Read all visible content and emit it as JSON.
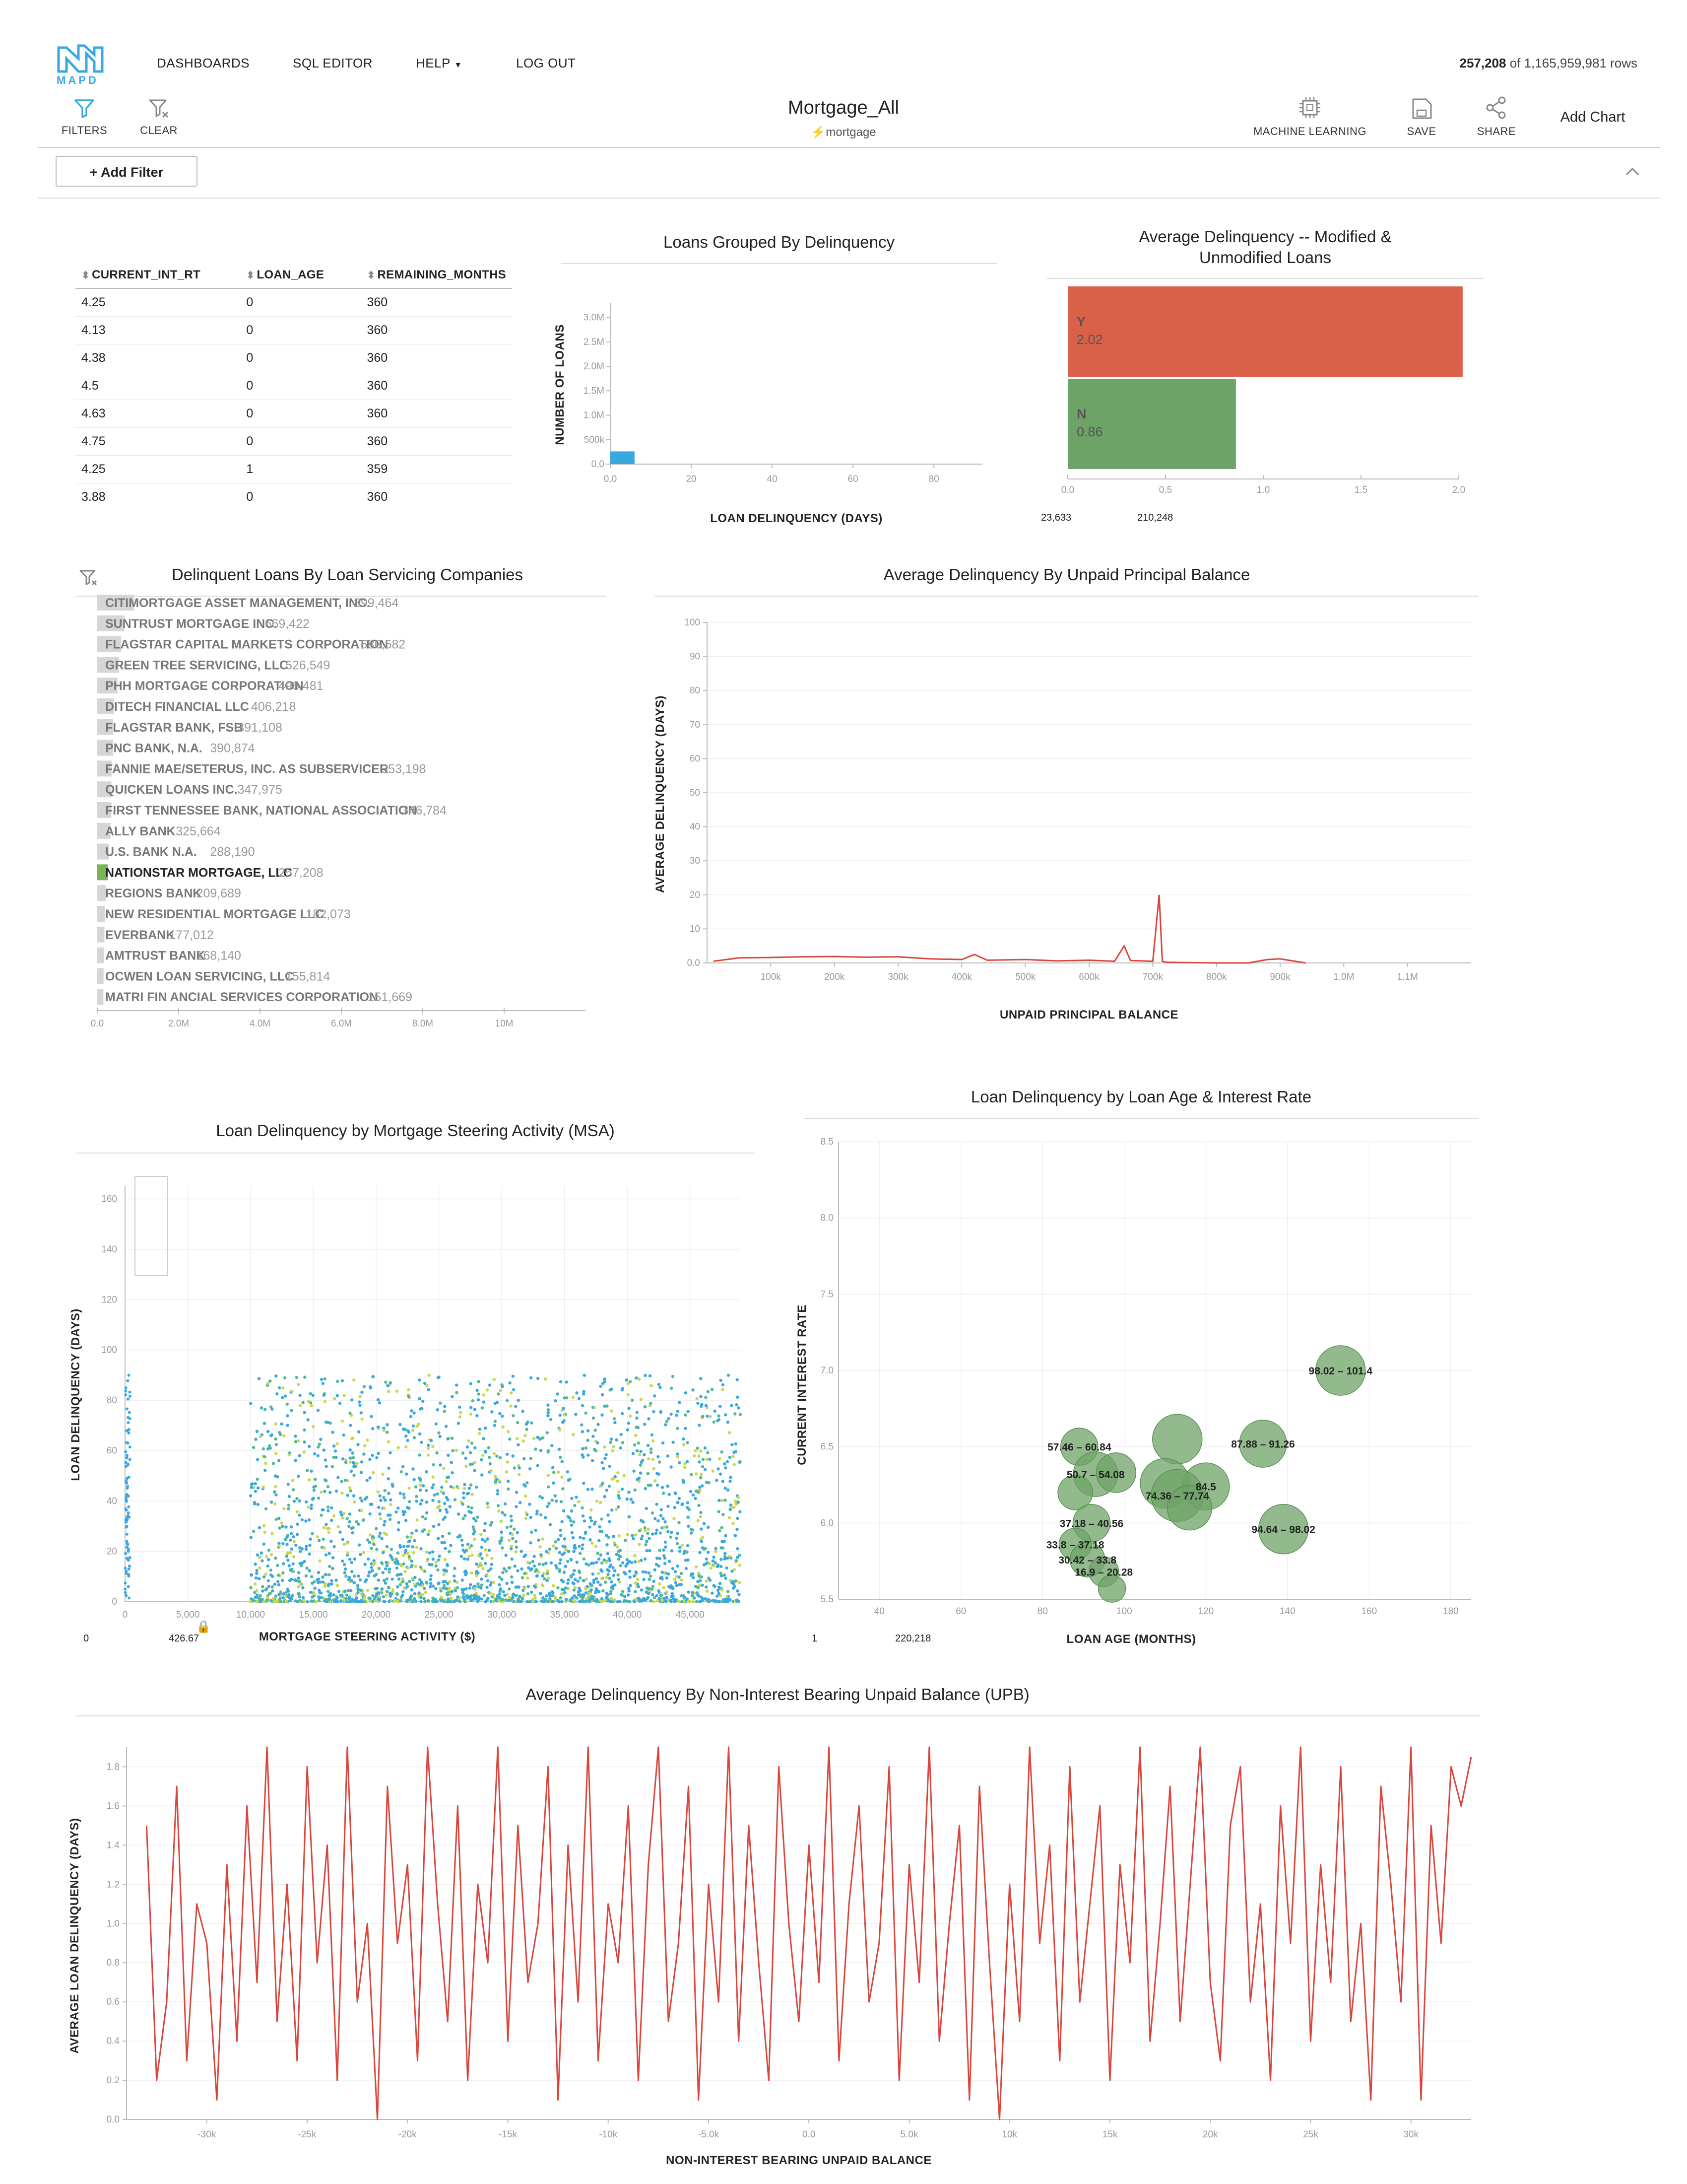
{
  "header": {
    "logo_text": "MAPD",
    "nav": [
      "DASHBOARDS",
      "SQL EDITOR",
      "HELP",
      "LOG OUT"
    ],
    "row_count_filtered": "257,208",
    "row_count_rest": " of 1,165,959,981 rows"
  },
  "toolbar": {
    "filters_label": "FILTERS",
    "clear_label": "CLEAR",
    "dashboard_title": "Mortgage_All",
    "source_table": "mortgage",
    "ml_label": "MACHINE LEARNING",
    "save_label": "SAVE",
    "share_label": "SHARE",
    "add_chart_label": "Add Chart",
    "add_filter_label": "+ Add Filter"
  },
  "colors": {
    "accent": "#3aa8e0",
    "red": "#d9614a",
    "green": "#6ea367",
    "line_red": "#d9463d"
  },
  "table": {
    "columns": [
      "CURRENT_INT_RT",
      "LOAN_AGE",
      "REMAINING_MONTHS"
    ],
    "rows": [
      [
        "4.25",
        "0",
        "360"
      ],
      [
        "4.13",
        "0",
        "360"
      ],
      [
        "4.38",
        "0",
        "360"
      ],
      [
        "4.5",
        "0",
        "360"
      ],
      [
        "4.63",
        "0",
        "360"
      ],
      [
        "4.75",
        "0",
        "360"
      ],
      [
        "4.25",
        "1",
        "359"
      ],
      [
        "3.88",
        "0",
        "360"
      ]
    ]
  },
  "charts": {
    "histogram": {
      "title": "Loans Grouped By Delinquency",
      "xlabel": "LOAN DELINQUENCY (DAYS)",
      "ylabel": "NUMBER OF LOANS",
      "yticks": [
        "0.0",
        "500k",
        "1.0M",
        "1.5M",
        "2.0M",
        "2.5M",
        "3.0M"
      ],
      "xticks": [
        "0.0",
        "20",
        "40",
        "60",
        "80"
      ]
    },
    "modified": {
      "title_line1": "Average Delinquency -- Modified &",
      "title_line2": "Unmodified Loans",
      "xticks": [
        "0.0",
        "0.5",
        "1.0",
        "1.5",
        "2.0"
      ],
      "range_min": "23,633",
      "range_max": "210,248"
    },
    "servicers": {
      "title": "Delinquent Loans By Loan Servicing Companies",
      "xticks": [
        "0.0",
        "2.0M",
        "4.0M",
        "6.0M",
        "8.0M",
        "10M"
      ]
    },
    "upb": {
      "title": "Average Delinquency By Unpaid Principal Balance",
      "xlabel": "UNPAID PRINCIPAL BALANCE",
      "ylabel": "AVERAGE DELINQUENCY (DAYS)",
      "yticks": [
        "0.0",
        "10",
        "20",
        "30",
        "40",
        "50",
        "60",
        "70",
        "80",
        "90",
        "100"
      ],
      "xticks": [
        "100k",
        "200k",
        "300k",
        "400k",
        "500k",
        "600k",
        "700k",
        "800k",
        "900k",
        "1.0M",
        "1.1M"
      ]
    },
    "msa": {
      "title": "Loan Delinquency by Mortgage Steering Activity (MSA)",
      "xlabel": "MORTGAGE STEERING ACTIVITY ($)",
      "ylabel": "LOAN DELINQUENCY (DAYS)",
      "yticks": [
        "0",
        "20",
        "40",
        "60",
        "80",
        "100",
        "120",
        "140",
        "160"
      ],
      "xticks": [
        "0",
        "5,000",
        "10,000",
        "15,000",
        "20,000",
        "25,000",
        "30,000",
        "35,000",
        "40,000",
        "45,000"
      ],
      "range_min": "0",
      "range_max": "426.67"
    },
    "bubble": {
      "title": "Loan Delinquency by Loan Age & Interest Rate",
      "xlabel": "LOAN AGE (MONTHS)",
      "ylabel": "CURRENT INTEREST RATE",
      "yticks": [
        "5.5",
        "6.0",
        "6.5",
        "7.0",
        "7.5",
        "8.0",
        "8.5"
      ],
      "xticks": [
        "40",
        "60",
        "80",
        "100",
        "120",
        "140",
        "160",
        "180"
      ],
      "range_min": "1",
      "range_max": "220,218"
    },
    "nib": {
      "title": "Average Delinquency By Non-Interest Bearing Unpaid Balance (UPB)",
      "xlabel": "NON-INTEREST BEARING UNPAID BALANCE",
      "ylabel": "AVERAGE LOAN DELINQUENCY (DAYS)",
      "yticks": [
        "0.0",
        "0.2",
        "0.4",
        "0.6",
        "0.8",
        "1.0",
        "1.2",
        "1.4",
        "1.6",
        "1.8"
      ],
      "xticks": [
        "-30k",
        "-25k",
        "-20k",
        "-15k",
        "-10k",
        "-5.0k",
        "0.0",
        "5.0k",
        "10k",
        "15k",
        "20k",
        "25k",
        "30k"
      ]
    }
  },
  "chart_data": [
    {
      "type": "bar",
      "title": "Loans Grouped By Delinquency",
      "xlabel": "LOAN DELINQUENCY (DAYS)",
      "ylabel": "NUMBER OF LOANS",
      "categories": [
        "0"
      ],
      "values": [
        260000
      ],
      "xlim": [
        0,
        92
      ],
      "ylim": [
        0,
        3200000
      ]
    },
    {
      "type": "bar",
      "title": "Average Delinquency -- Modified & Unmodified Loans",
      "orientation": "horizontal",
      "categories": [
        "Y",
        "N"
      ],
      "values": [
        2.02,
        0.86
      ],
      "xlim": [
        0,
        2.0
      ]
    },
    {
      "type": "bar",
      "title": "Delinquent Loans By Loan Servicing Companies",
      "orientation": "horizontal",
      "categories": [
        "CITIMORTGAGE ASSET MANAGEMENT, INC.",
        "SUNTRUST MORTGAGE INC.",
        "FLAGSTAR CAPITAL MARKETS CORPORATION",
        "GREEN TREE SERVICING, LLC",
        "PHH MORTGAGE CORPORATION",
        "DITECH FINANCIAL LLC",
        "FLAGSTAR BANK, FSB",
        "PNC BANK, N.A.",
        "FANNIE MAE/SETERUS, INC. AS SUBSERVICER",
        "QUICKEN LOANS INC.",
        "FIRST TENNESSEE BANK, NATIONAL ASSOCIATION",
        "ALLY BANK",
        "U.S. BANK N.A.",
        "NATIONSTAR MORTGAGE, LLC",
        "REGIONS BANK",
        "NEW RESIDENTIAL MORTGAGE LLC",
        "EVERBANK",
        "AMTRUST BANK",
        "OCWEN LOAN SERVICING, LLC",
        "MATRI FIN ANCIAL SERVICES CORPORATION"
      ],
      "values": [
        899464,
        669422,
        586582,
        526549,
        496481,
        406218,
        391108,
        390874,
        353198,
        347975,
        346784,
        325664,
        288190,
        257208,
        209689,
        182073,
        177012,
        168140,
        155814,
        151669
      ],
      "value_labels": [
        "899,464",
        "669,422",
        "586,582",
        "526,549",
        "496,481",
        "406,218",
        "391,108",
        "390,874",
        "353,198",
        "347,975",
        "346,784",
        "325,664",
        "288,190",
        "257,208",
        "209,689",
        "182,073",
        "177,012",
        "168,140",
        "155,814",
        "151,669"
      ],
      "selected": "NATIONSTAR MORTGAGE, LLC",
      "xlim": [
        0,
        12000000
      ]
    },
    {
      "type": "line",
      "title": "Average Delinquency By Unpaid Principal Balance",
      "xlabel": "UNPAID PRINCIPAL BALANCE",
      "ylabel": "AVERAGE DELINQUENCY (DAYS)",
      "x": [
        10000,
        50000,
        100000,
        150000,
        200000,
        250000,
        300000,
        350000,
        400000,
        420000,
        440000,
        500000,
        550000,
        600000,
        640000,
        655000,
        665000,
        700000,
        710000,
        715000,
        720000,
        760000,
        800000,
        850000,
        880000,
        900000,
        920000,
        940000
      ],
      "y": [
        0.5,
        1.5,
        1.6,
        1.8,
        1.9,
        1.7,
        1.8,
        1.2,
        1.0,
        2.5,
        0.8,
        1.0,
        0.6,
        0.8,
        0.5,
        5.0,
        0.7,
        0.5,
        20.0,
        0.5,
        0.2,
        0.1,
        0.0,
        0.0,
        1.0,
        1.2,
        0.6,
        0.0
      ],
      "xlim": [
        0,
        1200000
      ],
      "ylim": [
        0,
        100
      ]
    },
    {
      "type": "scatter",
      "title": "Loan Delinquency by Mortgage Steering Activity (MSA)",
      "xlabel": "MORTGAGE STEERING ACTIVITY ($)",
      "ylabel": "LOAN DELINQUENCY (DAYS)",
      "xlim": [
        0,
        49000
      ],
      "ylim": [
        0,
        165
      ]
    },
    {
      "type": "scatter",
      "title": "Loan Delinquency by Loan Age & Interest Rate",
      "xlabel": "LOAN AGE (MONTHS)",
      "ylabel": "CURRENT INTEREST RATE",
      "points": [
        {
          "x": 153,
          "y": 7.0,
          "r": 1.0,
          "label": "98.02 – 101.4"
        },
        {
          "x": 113,
          "y": 6.55,
          "r": 1.0,
          "label": ""
        },
        {
          "x": 134,
          "y": 6.52,
          "r": 0.95,
          "label": "87.88 – 91.26"
        },
        {
          "x": 89,
          "y": 6.5,
          "r": 0.75,
          "label": "57.46 – 60.84"
        },
        {
          "x": 93,
          "y": 6.32,
          "r": 0.9,
          "label": "50.7 – 54.08"
        },
        {
          "x": 98,
          "y": 6.33,
          "r": 0.8,
          "label": ""
        },
        {
          "x": 110,
          "y": 6.26,
          "r": 1.0,
          "label": ""
        },
        {
          "x": 120,
          "y": 6.24,
          "r": 0.95,
          "label": "84.5"
        },
        {
          "x": 113,
          "y": 6.18,
          "r": 1.05,
          "label": "74.36 – 77.74"
        },
        {
          "x": 116,
          "y": 6.1,
          "r": 0.9,
          "label": ""
        },
        {
          "x": 88,
          "y": 6.2,
          "r": 0.7,
          "label": ""
        },
        {
          "x": 92,
          "y": 6.0,
          "r": 0.75,
          "label": "37.18 – 40.56"
        },
        {
          "x": 139,
          "y": 5.96,
          "r": 1.0,
          "label": "94.64 – 98.02"
        },
        {
          "x": 88,
          "y": 5.86,
          "r": 0.65,
          "label": "33.8 – 37.18"
        },
        {
          "x": 91,
          "y": 5.76,
          "r": 0.7,
          "label": "30.42 – 33.8"
        },
        {
          "x": 95,
          "y": 5.68,
          "r": 0.6,
          "label": "16.9 – 20.28"
        },
        {
          "x": 97,
          "y": 5.57,
          "r": 0.55,
          "label": ""
        }
      ],
      "xlim": [
        30,
        185
      ],
      "ylim": [
        5.5,
        8.5
      ]
    },
    {
      "type": "line",
      "title": "Average Delinquency By Non-Interest Bearing Unpaid Balance (UPB)",
      "xlabel": "NON-INTEREST BEARING UNPAID BALANCE",
      "ylabel": "AVERAGE LOAN DELINQUENCY (DAYS)",
      "x": [
        -33000,
        -32500,
        -32000,
        -31500,
        -31000,
        -30500,
        -30000,
        -29500,
        -29000,
        -28500,
        -28000,
        -27500,
        -27000,
        -26500,
        -26000,
        -25500,
        -25000,
        -24500,
        -24000,
        -23500,
        -23000,
        -22500,
        -22000,
        -21500,
        -21000,
        -20500,
        -20000,
        -19500,
        -19000,
        -18500,
        -18000,
        -17500,
        -17000,
        -16500,
        -16000,
        -15500,
        -15000,
        -14500,
        -14000,
        -13500,
        -13000,
        -12500,
        -12000,
        -11500,
        -11000,
        -10500,
        -10000,
        -9500,
        -9000,
        -8500,
        -8000,
        -7500,
        -7000,
        -6500,
        -6000,
        -5500,
        -5000,
        -4500,
        -4000,
        -3500,
        -3000,
        -2500,
        -2000,
        -1500,
        -1000,
        -500,
        0,
        500,
        1000,
        1500,
        2000,
        2500,
        3000,
        3500,
        4000,
        4500,
        5000,
        5500,
        6000,
        6500,
        7000,
        7500,
        8000,
        8500,
        9000,
        9500,
        10000,
        10500,
        11000,
        11500,
        12000,
        12500,
        13000,
        13500,
        14000,
        14500,
        15000,
        15500,
        16000,
        16500,
        17000,
        17500,
        18000,
        18500,
        19000,
        19500,
        20000,
        20500,
        21000,
        21500,
        22000,
        22500,
        23000,
        23500,
        24000,
        24500,
        25000,
        25500,
        26000,
        26500,
        27000,
        27500,
        28000,
        28500,
        29000,
        29500,
        30000,
        30500,
        31000,
        31500,
        32000,
        32500,
        33000
      ],
      "y": [
        1.5,
        0.2,
        0.6,
        1.7,
        0.3,
        1.1,
        0.9,
        0.1,
        1.3,
        0.4,
        1.6,
        0.7,
        1.9,
        0.5,
        1.2,
        0.3,
        1.8,
        0.8,
        1.4,
        0.2,
        1.9,
        0.6,
        1.0,
        0.0,
        1.7,
        0.9,
        1.3,
        0.3,
        1.9,
        1.1,
        0.5,
        1.6,
        0.2,
        1.2,
        0.8,
        1.9,
        0.4,
        1.5,
        0.7,
        1.0,
        1.8,
        0.1,
        1.4,
        0.6,
        1.9,
        0.3,
        1.1,
        0.8,
        1.6,
        0.2,
        1.3,
        1.9,
        0.5,
        0.9,
        1.7,
        0.1,
        1.2,
        0.6,
        1.9,
        0.4,
        1.5,
        0.8,
        0.2,
        1.8,
        1.0,
        0.5,
        1.4,
        0.7,
        1.9,
        0.3,
        1.1,
        1.6,
        0.6,
        0.9,
        1.8,
        0.2,
        1.3,
        0.7,
        1.9,
        0.4,
        1.0,
        1.5,
        0.1,
        1.7,
        0.8,
        0.0,
        1.2,
        0.5,
        1.9,
        0.9,
        1.4,
        0.3,
        1.8,
        0.6,
        1.1,
        1.6,
        0.2,
        1.3,
        0.8,
        1.9,
        0.4,
        1.0,
        1.7,
        0.5,
        1.2,
        1.9,
        0.7,
        0.3,
        1.5,
        1.8,
        0.6,
        1.1,
        0.2,
        1.6,
        0.9,
        1.9,
        0.4,
        1.3,
        0.7,
        1.8,
        0.5,
        1.0,
        0.1,
        1.7,
        1.2,
        0.6,
        1.9,
        0.1,
        1.5,
        0.9,
        1.8,
        1.6,
        1.85
      ],
      "xlim": [
        -34000,
        33000
      ],
      "ylim": [
        0,
        1.9
      ]
    }
  ]
}
